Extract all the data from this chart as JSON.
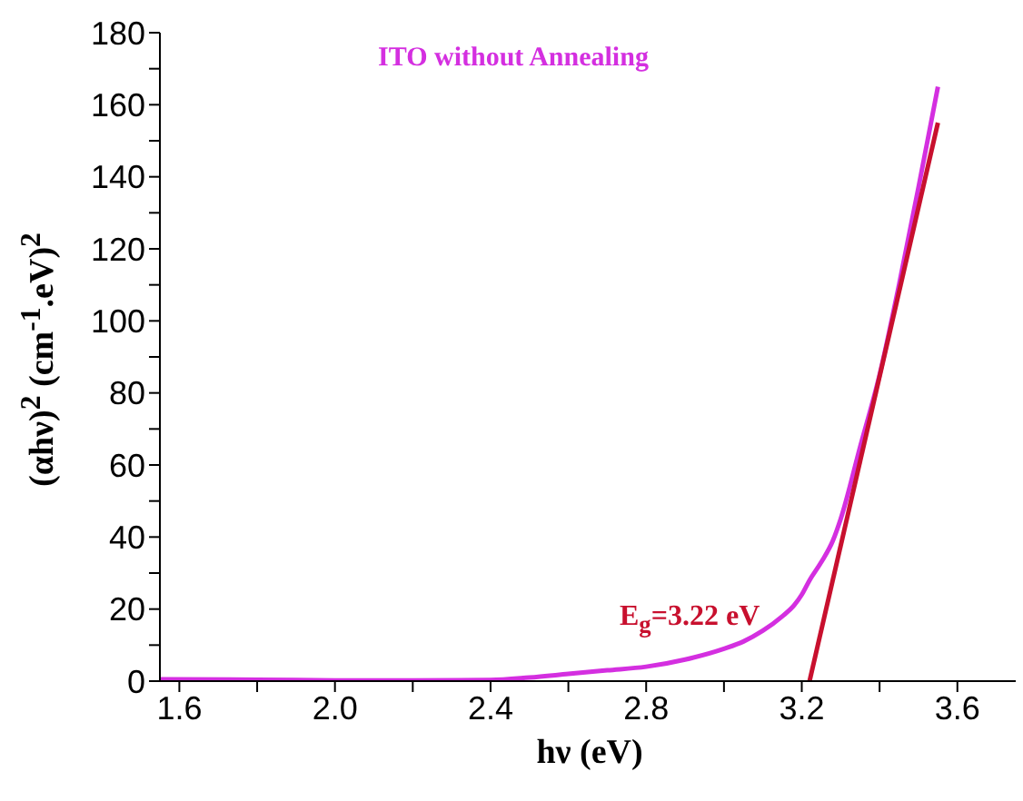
{
  "chart_data": {
    "type": "line",
    "title": "ITO without Annealing",
    "xlabel": "hν (eV)",
    "ylabel": "(αhν)$^{2}$ (cm$^{-1}$.eV)$^{2}$",
    "annotations": [
      "E$_{g}$=3.22 eV"
    ],
    "xlim": [
      1.55,
      3.75
    ],
    "ylim": [
      0,
      180
    ],
    "xticks": [
      1.6,
      {
        "value": 1.8,
        "label": null
      },
      {
        "value": 2.0,
        "label": "2.0"
      },
      {
        "value": 2.2,
        "label": null
      },
      2.4,
      {
        "value": 2.6,
        "label": null
      },
      2.8,
      {
        "value": 3.0,
        "label": null
      },
      3.2,
      {
        "value": 3.4,
        "label": null
      },
      3.6
    ],
    "yticks": [
      0,
      {
        "value": 10,
        "label": null
      },
      20,
      {
        "value": 30,
        "label": null
      },
      40,
      {
        "value": 50,
        "label": null
      },
      60,
      {
        "value": 70,
        "label": null
      },
      80,
      {
        "value": 90,
        "label": null
      },
      100,
      {
        "value": 110,
        "label": null
      },
      120,
      {
        "value": 130,
        "label": null
      },
      140,
      {
        "value": 150,
        "label": null
      },
      160,
      {
        "value": 170,
        "label": null
      },
      180
    ],
    "grid": false,
    "marker": "none",
    "series": [
      {
        "color": "#d42fe0",
        "x": [
          1.55,
          1.8,
          2.0,
          2.2,
          2.4,
          2.5,
          2.6,
          2.7,
          2.8,
          2.9,
          3.0,
          3.05,
          3.1,
          3.15,
          3.18,
          3.2,
          3.22,
          3.25,
          3.28,
          3.3,
          3.35,
          3.4,
          3.45,
          3.5,
          3.55
        ],
        "values": [
          0.5,
          0.4,
          0.2,
          0.2,
          0.3,
          1,
          2,
          3,
          4,
          6,
          9,
          11,
          14,
          18,
          21,
          24,
          28,
          33,
          39,
          45,
          65,
          85,
          110,
          137,
          165
        ]
      },
      {
        "color": "#c8102e",
        "x": [
          3.22,
          3.55
        ],
        "values": [
          0,
          155
        ]
      }
    ]
  }
}
